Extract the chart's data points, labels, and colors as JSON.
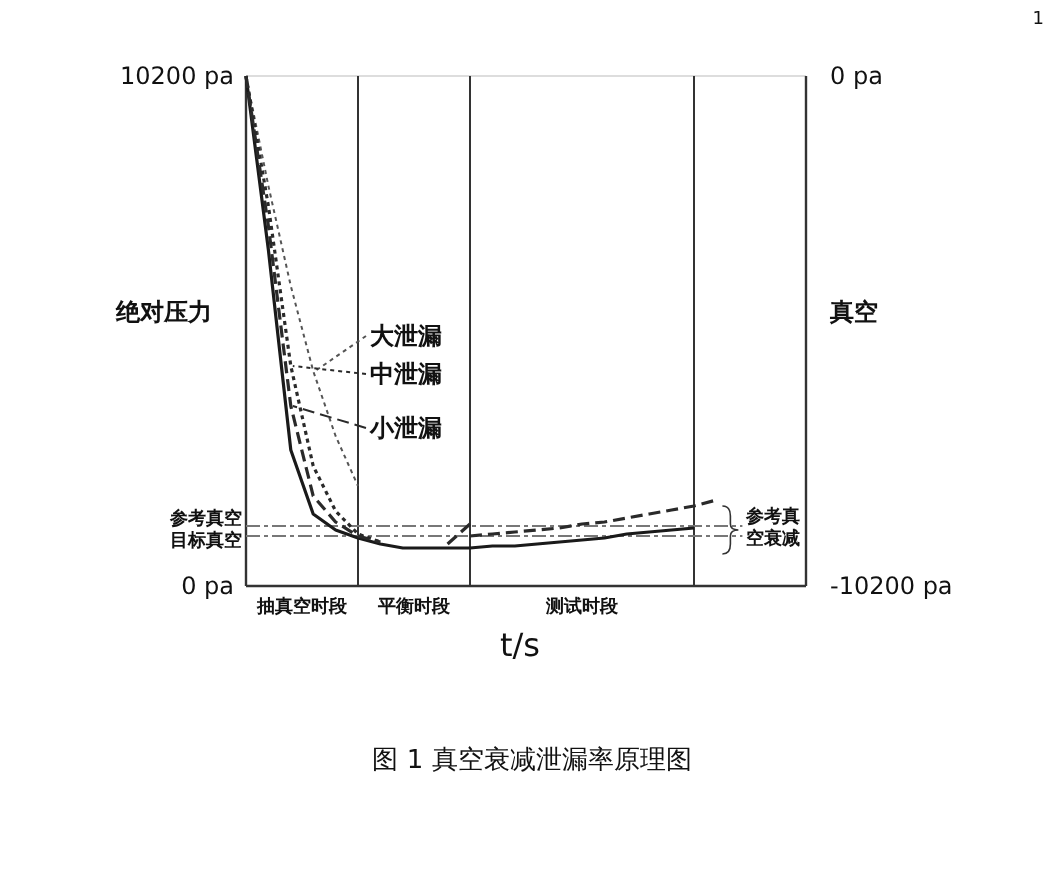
{
  "chart_data": {
    "type": "line",
    "title": "图 1  真空衰减泄漏率原理图",
    "xlabel": "t/s",
    "ylabel": "绝对压力",
    "y2label": "真空",
    "categories": [
      null,
      null,
      null,
      null,
      null,
      null,
      null,
      null,
      null,
      null,
      null,
      null,
      null,
      null,
      null,
      null,
      null,
      null,
      null,
      null,
      null,
      null,
      null,
      null,
      null,
      null
    ],
    "ylim": [
      0,
      10200
    ],
    "yticks": [
      {
        "value": 0,
        "label": "0 pa"
      },
      {
        "value": 10200,
        "label": "10200 pa"
      }
    ],
    "y2lim": [
      -10200,
      0
    ],
    "y2ticks": [
      {
        "value": -10200,
        "label": "-10200 pa"
      },
      {
        "value": 0,
        "label": "0 pa"
      }
    ],
    "grid": "x",
    "legend": "left",
    "marker": "none",
    "series": [
      {
        "color": "#1a1a1a",
        "line_style": "solid",
        "values": [
          10200,
          6720,
          2720,
          1440,
          1120,
          960,
          840,
          760,
          760,
          760,
          760,
          800,
          800,
          840,
          880,
          920,
          960,
          1040,
          1080,
          1120,
          1160,
          null,
          null,
          null,
          null,
          null
        ]
      },
      {
        "name": "大泄漏",
        "color": "#555555",
        "line_style": "dotted",
        "values": [
          10200,
          8000,
          6000,
          4300,
          3000,
          2000,
          null,
          null,
          null,
          null,
          null,
          null,
          null,
          null,
          null,
          null,
          null,
          null,
          null,
          null,
          null,
          null,
          null,
          null,
          null,
          null
        ]
      },
      {
        "name": "中泄漏",
        "color": "#2a2a2a",
        "line_style": "dotted",
        "values": [
          10200,
          7600,
          4400,
          2400,
          1500,
          1040,
          880,
          null,
          null,
          null,
          null,
          null,
          null,
          null,
          null,
          null,
          null,
          null,
          null,
          null,
          null,
          null,
          null,
          null,
          null,
          null
        ]
      },
      {
        "name": "小泄漏",
        "color": "#2a2a2a",
        "line_style": "dashed",
        "values": [
          10200,
          7200,
          3600,
          1800,
          1280,
          1000,
          880,
          null,
          null,
          null,
          null,
          null,
          null,
          null,
          null,
          null,
          null,
          null,
          null,
          null,
          null,
          null,
          null,
          null,
          null,
          null
        ]
      },
      {
        "color": "#2a2a2a",
        "line_style": "dashed",
        "values": [
          null,
          null,
          null,
          null,
          null,
          null,
          null,
          null,
          null,
          840,
          1240,
          null,
          null,
          null,
          null,
          null,
          null,
          null,
          null,
          null,
          null,
          null,
          null,
          null,
          null,
          null
        ]
      },
      {
        "color": "#2a2a2a",
        "line_style": "dashed",
        "values": [
          null,
          null,
          null,
          null,
          null,
          null,
          null,
          null,
          null,
          null,
          1000,
          1040,
          1080,
          1120,
          1160,
          1240,
          1280,
          1360,
          1440,
          1520,
          1600,
          1720,
          null,
          null,
          null,
          null
        ]
      }
    ],
    "ref_lines": [
      {
        "axis": "y",
        "value": 1200,
        "label": "参考真空",
        "color": "#777777",
        "line_style": "dashed"
      },
      {
        "axis": "y",
        "value": 1000,
        "label": "目标真空",
        "color": "#777777",
        "line_style": "dashed"
      }
    ],
    "annotations": [
      "抽真空时段",
      "平衡时段",
      "测试时段",
      "参考真空衰减",
      "1"
    ]
  }
}
